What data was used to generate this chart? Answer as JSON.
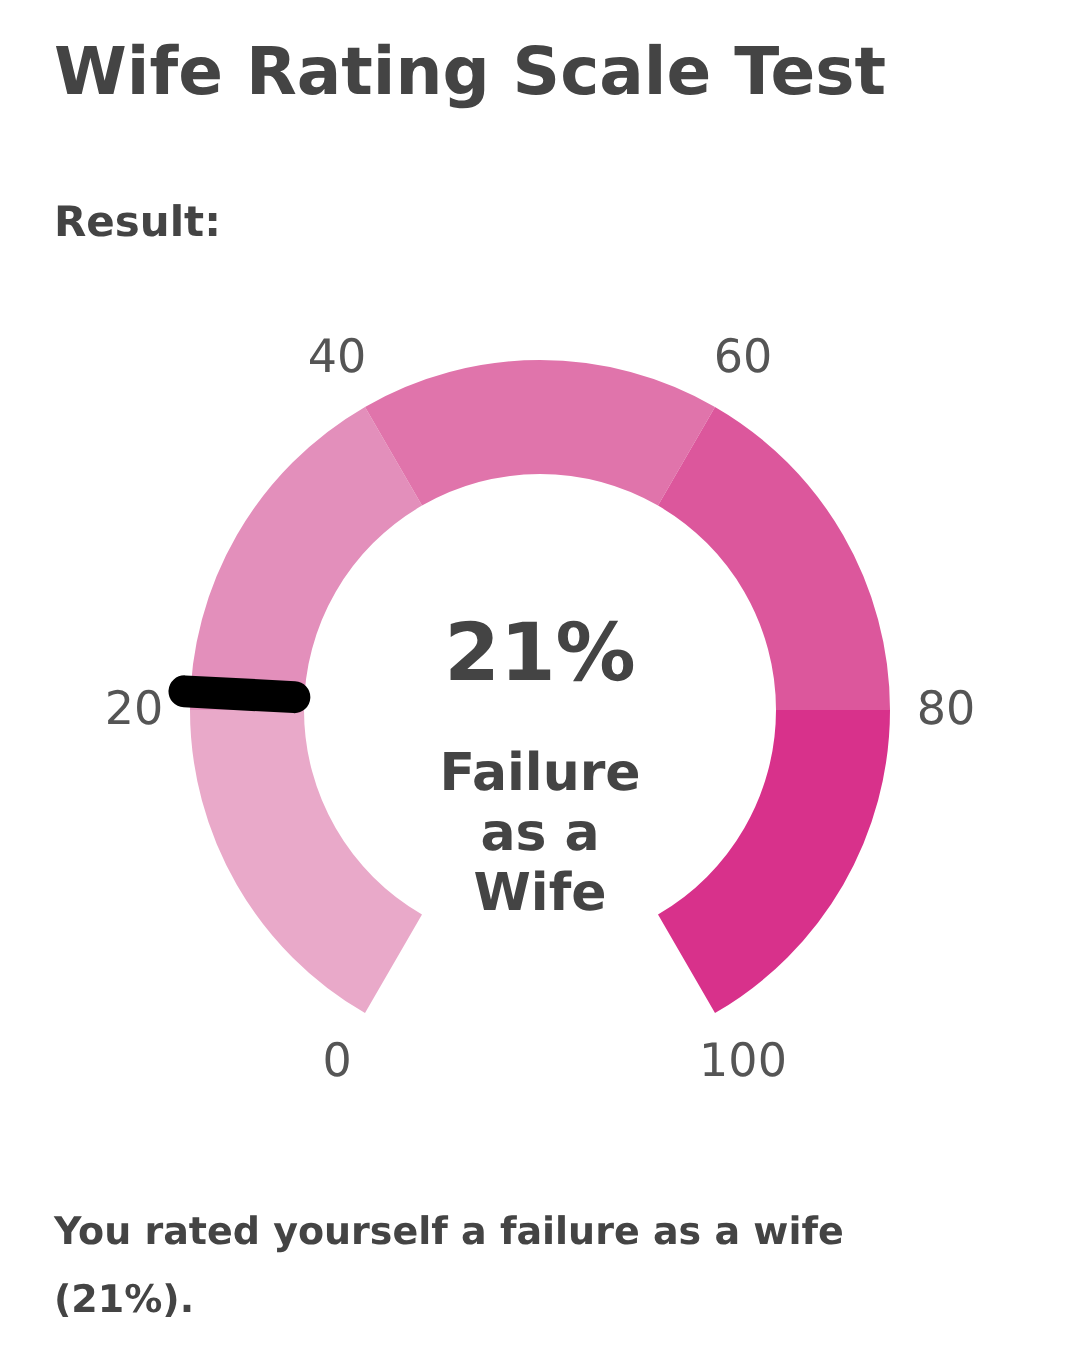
{
  "chart_data": {
    "type": "donut",
    "title": "Wife Rating Scale Test",
    "subtitle": "Result:",
    "categories": [
      "0",
      "20",
      "40",
      "60",
      "80"
    ],
    "values": [
      20,
      20,
      20,
      20,
      20
    ],
    "colors": [
      "#e9a9c9",
      "#e38fbb",
      "#e074ab",
      "#dc579c",
      "#d8318b"
    ],
    "needle": "20",
    "annotations": [
      "100",
      "21%",
      "Failure as a Wife",
      "You rated yourself a failure as a wife (21%)."
    ]
  }
}
